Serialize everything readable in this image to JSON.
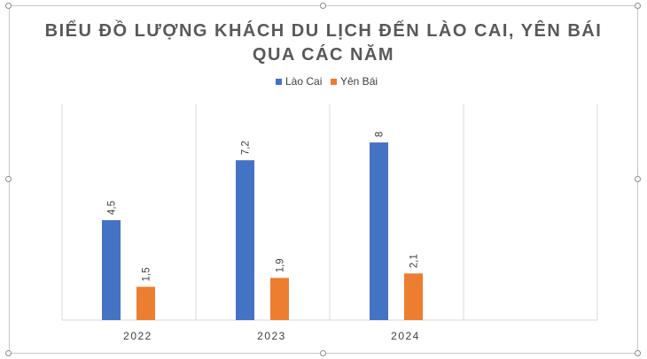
{
  "chart_data": {
    "type": "bar",
    "title_line1": "BIỂU ĐỒ LƯỢNG KHÁCH DU LỊCH ĐẾN LÀO CAI, YÊN BÁI",
    "title_line2": "QUA CÁC NĂM",
    "categories": [
      "2022",
      "2023",
      "2024"
    ],
    "series": [
      {
        "name": "Lào Cai",
        "values": [
          4.5,
          7.2,
          8
        ],
        "labels": [
          "4,5",
          "7,2",
          "8"
        ],
        "color": "#4472c4"
      },
      {
        "name": "Yên Bái",
        "values": [
          1.5,
          1.9,
          2.1
        ],
        "labels": [
          "1,5",
          "1,9",
          "2,1"
        ],
        "color": "#ed7d31"
      }
    ],
    "ylim": [
      0,
      9
    ],
    "grid": "vertical",
    "legend_position": "top",
    "data_labels": "rotated"
  }
}
